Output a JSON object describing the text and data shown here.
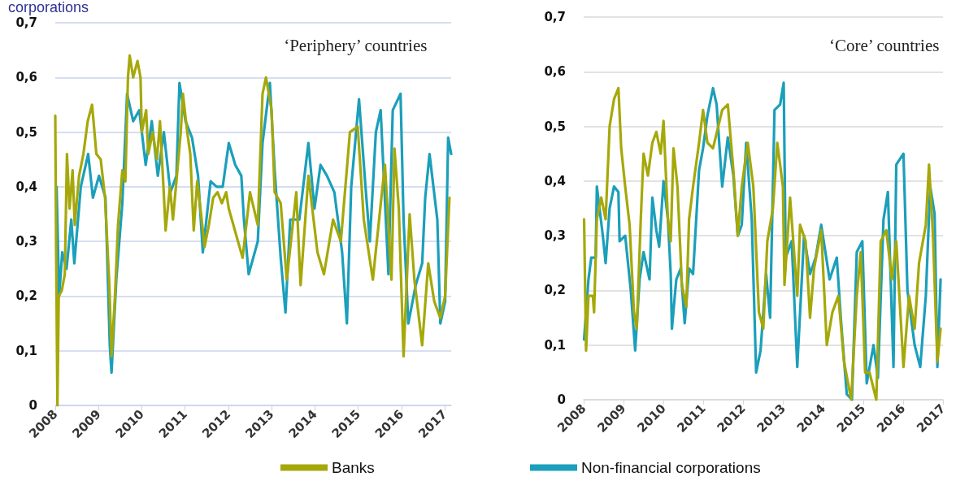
{
  "chart_data": [
    {
      "type": "line",
      "title": "‘Periphery’ countries",
      "annotations": [
        "corporations"
      ],
      "legend": "bottom",
      "grid": "y",
      "marker": "none",
      "line_style": "solid",
      "xlim": [
        2008,
        2017.15
      ],
      "xticks": [
        2008,
        2009,
        2010,
        2011,
        2012,
        2013,
        2014,
        2015,
        2016,
        2017
      ],
      "ylim": [
        0,
        0.7
      ],
      "yticks": [
        0,
        {
          "value": 0.1,
          "label": "0,1"
        },
        {
          "value": 0.2,
          "label": "0,2"
        },
        {
          "value": 0.3,
          "label": "0,3"
        },
        {
          "value": 0.4,
          "label": "0,4"
        },
        {
          "value": 0.5,
          "label": "0,5"
        },
        {
          "value": 0.6,
          "label": "0,6"
        },
        {
          "value": 0.7,
          "label": "0,7"
        }
      ],
      "series": [
        {
          "color": "#1b9fbb",
          "x": [
            2008.03,
            2008.09,
            2008.16,
            2008.26,
            2008.37,
            2008.44,
            2008.59,
            2008.76,
            2008.87,
            2009.01,
            2009.16,
            2009.26,
            2009.3,
            2009.41,
            2009.55,
            2009.66,
            2009.8,
            2009.94,
            2010.09,
            2010.23,
            2010.37,
            2010.51,
            2010.66,
            2010.8,
            2010.87,
            2011.01,
            2011.16,
            2011.3,
            2011.41,
            2011.59,
            2011.73,
            2011.87,
            2012.01,
            2012.16,
            2012.3,
            2012.36,
            2012.47,
            2012.68,
            2012.79,
            2012.96,
            2013.07,
            2013.21,
            2013.32,
            2013.43,
            2013.64,
            2013.85,
            2013.99,
            2014.13,
            2014.28,
            2014.45,
            2014.63,
            2014.74,
            2014.84,
            2015.02,
            2015.16,
            2015.27,
            2015.41,
            2015.52,
            2015.7,
            2015.8,
            2015.98,
            2016.05,
            2016.16,
            2016.33,
            2016.48,
            2016.55,
            2016.65,
            2016.83,
            2016.9,
            2017.01,
            2017.08,
            2017.15
          ],
          "values": [
            0.4,
            0.2,
            0.28,
            0.25,
            0.34,
            0.26,
            0.4,
            0.46,
            0.38,
            0.42,
            0.38,
            0.11,
            0.06,
            0.23,
            0.37,
            0.57,
            0.52,
            0.54,
            0.44,
            0.52,
            0.42,
            0.5,
            0.39,
            0.42,
            0.59,
            0.52,
            0.49,
            0.42,
            0.28,
            0.41,
            0.4,
            0.4,
            0.48,
            0.44,
            0.42,
            0.34,
            0.24,
            0.3,
            0.48,
            0.59,
            0.43,
            0.27,
            0.17,
            0.34,
            0.34,
            0.48,
            0.36,
            0.44,
            0.42,
            0.39,
            0.28,
            0.15,
            0.4,
            0.56,
            0.41,
            0.3,
            0.5,
            0.54,
            0.24,
            0.54,
            0.57,
            0.34,
            0.15,
            0.22,
            0.26,
            0.38,
            0.46,
            0.34,
            0.15,
            0.19,
            0.49,
            0.46
          ]
        },
        {
          "name": "Banks",
          "color": "#a6a80a",
          "x": [
            2008.0,
            2008.02,
            2008.05,
            2008.08,
            2008.15,
            2008.22,
            2008.27,
            2008.33,
            2008.4,
            2008.45,
            2008.55,
            2008.65,
            2008.75,
            2008.85,
            2008.95,
            2009.05,
            2009.15,
            2009.25,
            2009.3,
            2009.38,
            2009.45,
            2009.55,
            2009.62,
            2009.68,
            2009.72,
            2009.8,
            2009.9,
            2009.97,
            2010.0,
            2010.1,
            2010.15,
            2010.25,
            2010.35,
            2010.42,
            2010.5,
            2010.55,
            2010.65,
            2010.72,
            2010.8,
            2010.9,
            2010.95,
            2011.05,
            2011.12,
            2011.2,
            2011.28,
            2011.37,
            2011.45,
            2011.55,
            2011.65,
            2011.75,
            2011.85,
            2011.95,
            2012.01,
            2012.33,
            2012.5,
            2012.68,
            2012.79,
            2012.87,
            2013.0,
            2013.07,
            2013.21,
            2013.35,
            2013.57,
            2013.67,
            2013.85,
            2014.06,
            2014.21,
            2014.42,
            2014.6,
            2014.81,
            2014.99,
            2015.13,
            2015.34,
            2015.55,
            2015.62,
            2015.77,
            2015.84,
            2015.94,
            2016.05,
            2016.19,
            2016.3,
            2016.48,
            2016.62,
            2016.76,
            2016.9,
            2017.01,
            2017.11
          ],
          "values": [
            0.53,
            0.28,
            0.0,
            0.2,
            0.21,
            0.24,
            0.46,
            0.36,
            0.43,
            0.33,
            0.42,
            0.46,
            0.52,
            0.55,
            0.46,
            0.45,
            0.38,
            0.22,
            0.09,
            0.2,
            0.33,
            0.43,
            0.41,
            0.6,
            0.64,
            0.6,
            0.63,
            0.6,
            0.5,
            0.54,
            0.46,
            0.5,
            0.45,
            0.52,
            0.4,
            0.32,
            0.4,
            0.34,
            0.41,
            0.5,
            0.57,
            0.5,
            0.46,
            0.32,
            0.41,
            0.35,
            0.29,
            0.33,
            0.38,
            0.39,
            0.37,
            0.39,
            0.36,
            0.27,
            0.39,
            0.33,
            0.57,
            0.6,
            0.54,
            0.39,
            0.37,
            0.23,
            0.39,
            0.22,
            0.42,
            0.28,
            0.24,
            0.34,
            0.3,
            0.5,
            0.51,
            0.34,
            0.23,
            0.39,
            0.44,
            0.23,
            0.47,
            0.36,
            0.09,
            0.35,
            0.23,
            0.11,
            0.26,
            0.19,
            0.16,
            0.2,
            0.38
          ]
        }
      ]
    },
    {
      "type": "line",
      "title": "‘Core’ countries",
      "legend": "bottom",
      "grid": "y",
      "marker": "none",
      "line_style": "solid",
      "xlim": [
        2008,
        2017
      ],
      "xticks": [
        2008,
        2009,
        2010,
        2011,
        2012,
        2013,
        2014,
        2015,
        2016,
        2017
      ],
      "ylim": [
        0,
        0.7
      ],
      "yticks": [
        0,
        {
          "value": 0.1,
          "label": "0,1"
        },
        {
          "value": 0.2,
          "label": "0,2"
        },
        {
          "value": 0.3,
          "label": "0,3"
        },
        {
          "value": 0.4,
          "label": "0,4"
        },
        {
          "value": 0.5,
          "label": "0,5"
        },
        {
          "value": 0.6,
          "label": "0,6"
        },
        {
          "value": 0.7,
          "label": "0,7"
        }
      ],
      "series": [
        {
          "name": "Non-financial corporations",
          "color": "#1b9fbb",
          "x": [
            2008.01,
            2008.12,
            2008.19,
            2008.3,
            2008.33,
            2008.48,
            2008.55,
            2008.65,
            2008.76,
            2008.87,
            2008.9,
            2009.04,
            2009.18,
            2009.29,
            2009.4,
            2009.5,
            2009.65,
            2009.72,
            2009.82,
            2009.89,
            2010.0,
            2010.11,
            2010.18,
            2010.21,
            2010.32,
            2010.43,
            2010.53,
            2010.64,
            2010.74,
            2010.89,
            2010.99,
            2011.1,
            2011.24,
            2011.33,
            2011.47,
            2011.61,
            2011.75,
            2011.86,
            2011.96,
            2012.07,
            2012.21,
            2012.32,
            2012.43,
            2012.57,
            2012.67,
            2012.78,
            2012.92,
            2013.01,
            2013.06,
            2013.21,
            2013.35,
            2013.52,
            2013.67,
            2013.81,
            2013.95,
            2014.16,
            2014.34,
            2014.45,
            2014.59,
            2014.72,
            2014.84,
            2014.98,
            2015.09,
            2015.26,
            2015.37,
            2015.51,
            2015.62,
            2015.76,
            2015.83,
            2016.01,
            2016.11,
            2016.29,
            2016.43,
            2016.57,
            2016.68,
            2016.79,
            2016.86,
            2016.94
          ],
          "values": [
            0.11,
            0.22,
            0.26,
            0.26,
            0.39,
            0.3,
            0.25,
            0.35,
            0.39,
            0.38,
            0.29,
            0.3,
            0.2,
            0.09,
            0.22,
            0.27,
            0.22,
            0.37,
            0.31,
            0.28,
            0.4,
            0.33,
            0.23,
            0.13,
            0.22,
            0.24,
            0.14,
            0.24,
            0.23,
            0.42,
            0.46,
            0.52,
            0.57,
            0.54,
            0.39,
            0.48,
            0.41,
            0.3,
            0.32,
            0.47,
            0.33,
            0.05,
            0.09,
            0.23,
            0.15,
            0.53,
            0.54,
            0.58,
            0.26,
            0.29,
            0.06,
            0.3,
            0.23,
            0.26,
            0.32,
            0.22,
            0.26,
            0.14,
            0.01,
            0.0,
            0.27,
            0.29,
            0.03,
            0.1,
            0.04,
            0.33,
            0.38,
            0.06,
            0.43,
            0.45,
            0.2,
            0.1,
            0.06,
            0.19,
            0.39,
            0.34,
            0.06,
            0.22
          ]
        },
        {
          "color": "#a6a80a",
          "x": [
            2008.01,
            2008.06,
            2008.12,
            2008.23,
            2008.26,
            2008.33,
            2008.44,
            2008.55,
            2008.65,
            2008.76,
            2008.87,
            2008.94,
            2009.04,
            2009.15,
            2009.26,
            2009.33,
            2009.43,
            2009.5,
            2009.61,
            2009.72,
            2009.82,
            2009.93,
            2010.0,
            2010.11,
            2010.18,
            2010.25,
            2010.35,
            2010.46,
            2010.57,
            2010.64,
            2010.74,
            2010.89,
            2010.99,
            2011.1,
            2011.24,
            2011.47,
            2011.61,
            2011.75,
            2011.86,
            2011.96,
            2012.11,
            2012.25,
            2012.39,
            2012.5,
            2012.6,
            2012.74,
            2012.85,
            2012.99,
            2013.03,
            2013.17,
            2013.35,
            2013.42,
            2013.56,
            2013.67,
            2013.77,
            2013.95,
            2014.09,
            2014.23,
            2014.38,
            2014.52,
            2014.7,
            2014.84,
            2014.94,
            2015.05,
            2015.16,
            2015.33,
            2015.44,
            2015.58,
            2015.72,
            2015.83,
            2016.01,
            2016.15,
            2016.29,
            2016.4,
            2016.57,
            2016.65,
            2016.75,
            2016.86,
            2016.94
          ],
          "values": [
            0.33,
            0.09,
            0.19,
            0.19,
            0.16,
            0.33,
            0.37,
            0.33,
            0.5,
            0.55,
            0.57,
            0.46,
            0.39,
            0.32,
            0.16,
            0.13,
            0.33,
            0.45,
            0.41,
            0.47,
            0.49,
            0.45,
            0.51,
            0.33,
            0.29,
            0.46,
            0.39,
            0.21,
            0.17,
            0.33,
            0.39,
            0.47,
            0.53,
            0.47,
            0.46,
            0.53,
            0.54,
            0.42,
            0.3,
            0.39,
            0.47,
            0.39,
            0.16,
            0.13,
            0.29,
            0.35,
            0.47,
            0.39,
            0.21,
            0.37,
            0.19,
            0.32,
            0.29,
            0.15,
            0.24,
            0.31,
            0.1,
            0.16,
            0.19,
            0.07,
            0.0,
            0.19,
            0.27,
            0.05,
            0.05,
            0.0,
            0.29,
            0.31,
            0.22,
            0.29,
            0.06,
            0.19,
            0.13,
            0.25,
            0.32,
            0.43,
            0.3,
            0.07,
            0.13
          ]
        }
      ]
    }
  ]
}
